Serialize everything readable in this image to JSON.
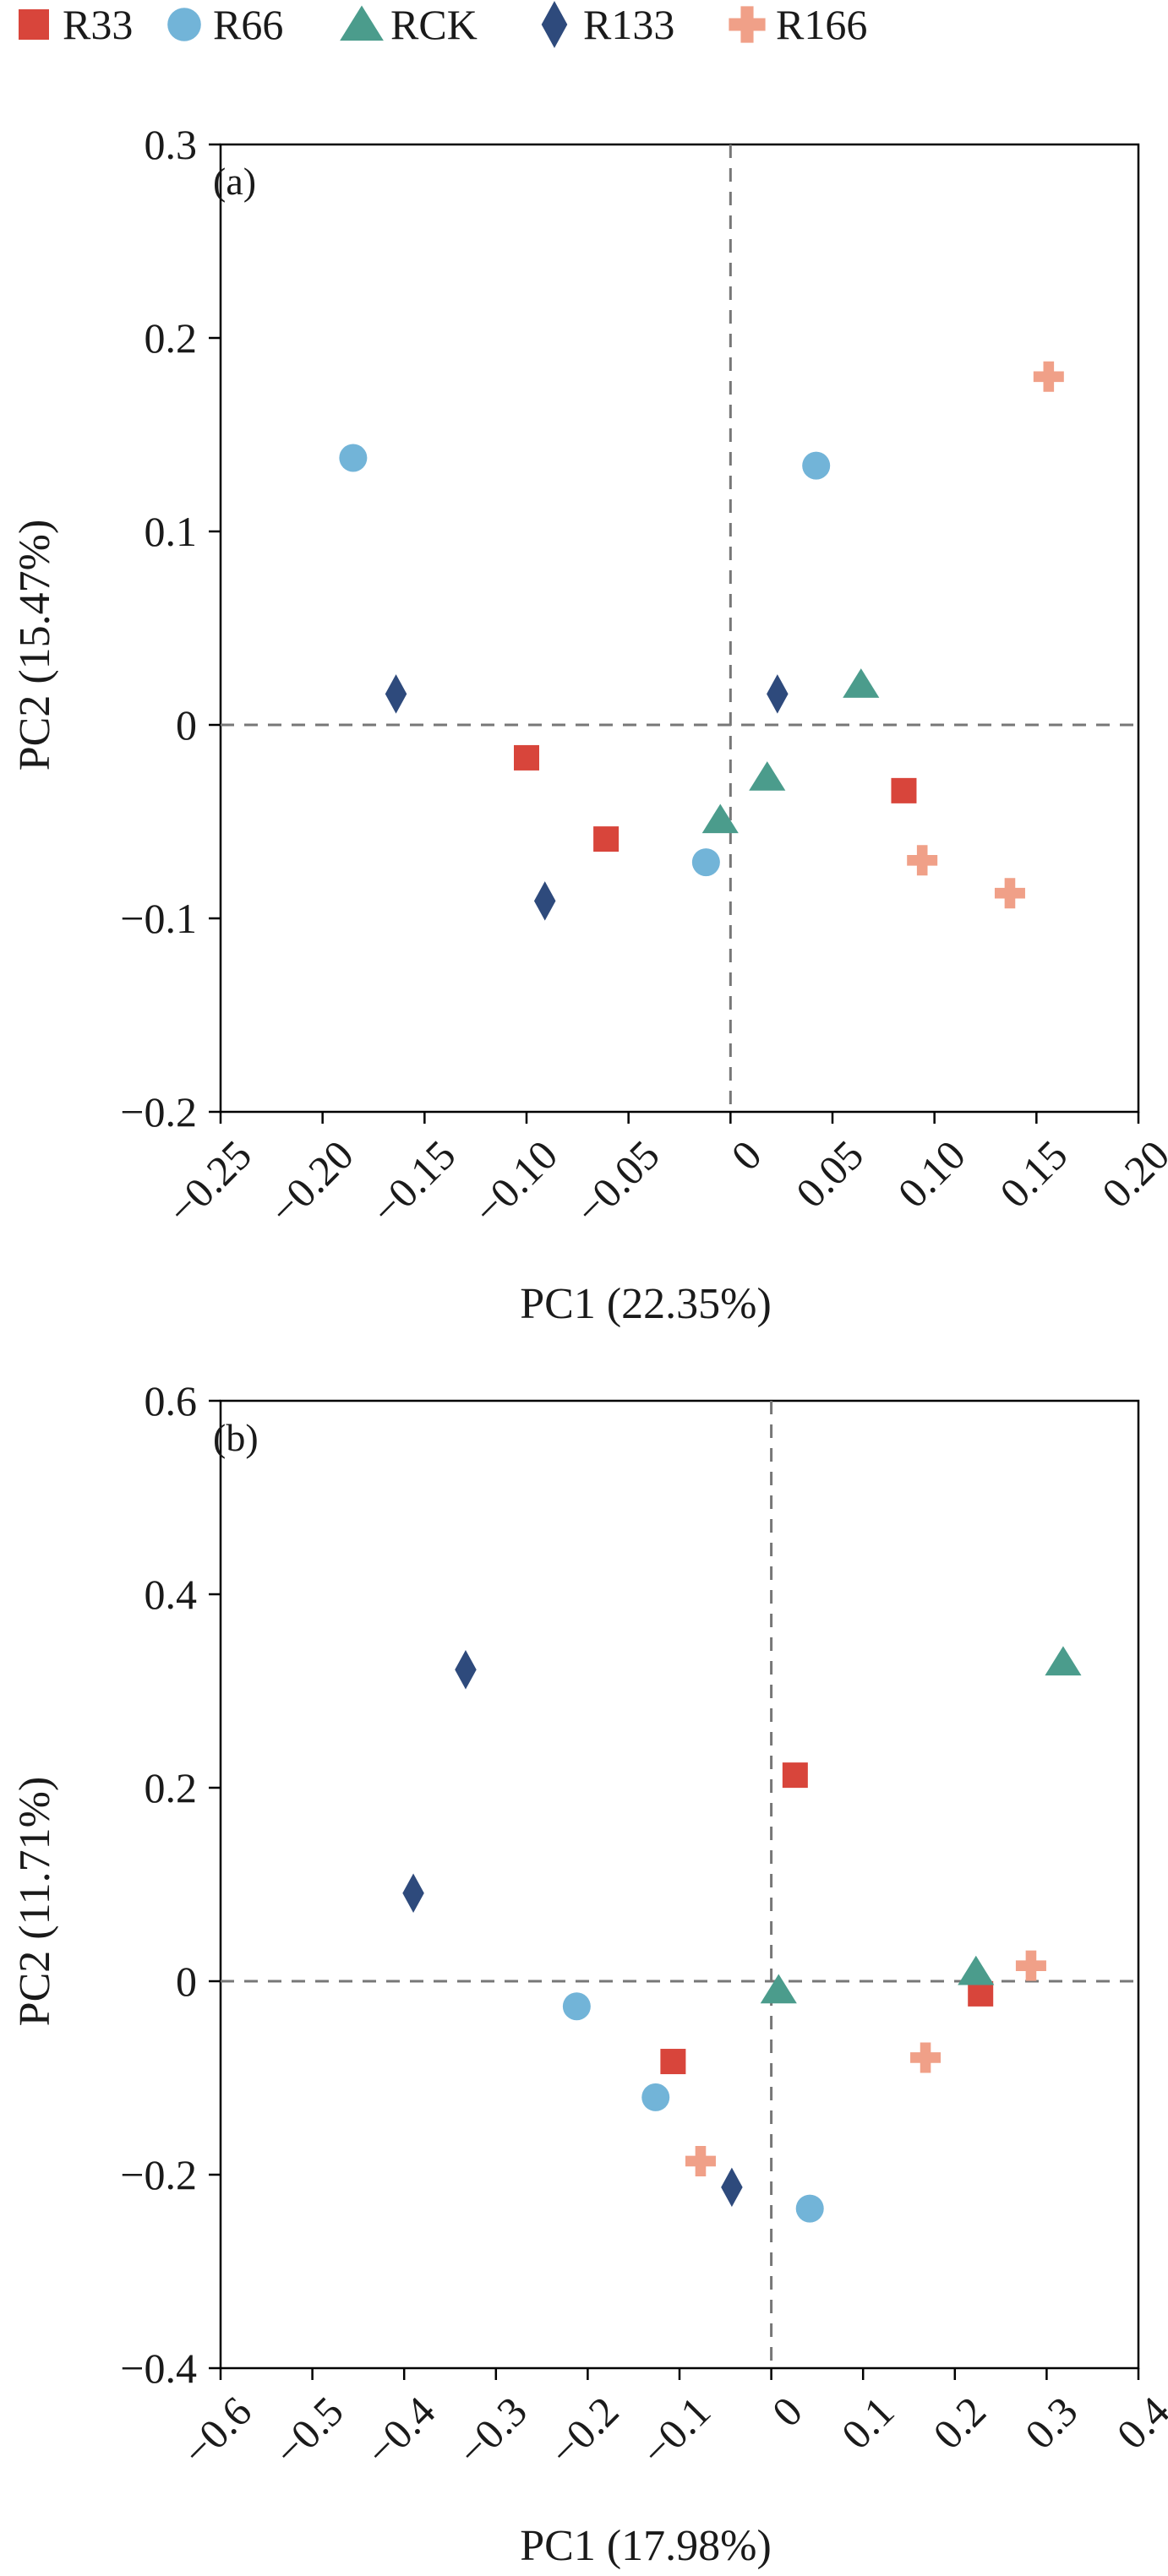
{
  "legend": {
    "items": [
      {
        "name": "R33",
        "color": "#d8453b",
        "marker": "square"
      },
      {
        "name": "R66",
        "color": "#72b4d8",
        "marker": "circle"
      },
      {
        "name": "RCK",
        "color": "#4b9c8c",
        "marker": "triangle"
      },
      {
        "name": "R133",
        "color": "#2e4a7c",
        "marker": "diamond"
      },
      {
        "name": "R166",
        "color": "#f0a088",
        "marker": "cross"
      }
    ]
  },
  "chart_data": [
    {
      "type": "scatter",
      "panel_label": "(a)",
      "xlabel": "PC1 (22.35%)",
      "ylabel": "PC2 (15.47%)",
      "xlim": [
        -0.25,
        0.2
      ],
      "ylim": [
        -0.2,
        0.3
      ],
      "xticks": [
        "−0.25",
        "−0.20",
        "−0.15",
        "−0.10",
        "−0.05",
        "0",
        "0.05",
        "0.10",
        "0.15",
        "0.20"
      ],
      "xtick_values": [
        -0.25,
        -0.2,
        -0.15,
        -0.1,
        -0.05,
        0,
        0.05,
        0.1,
        0.15,
        0.2
      ],
      "yticks": [
        "0.3",
        "0.2",
        "0.1",
        "0",
        "−0.1",
        "−0.2"
      ],
      "ytick_values": [
        0.3,
        0.2,
        0.1,
        0,
        -0.1,
        -0.2
      ],
      "reference_lines": {
        "x": 0,
        "y": 0
      },
      "series": [
        {
          "name": "R33",
          "points": [
            [
              -0.1,
              -0.017
            ],
            [
              -0.061,
              -0.059
            ],
            [
              0.085,
              -0.034
            ]
          ]
        },
        {
          "name": "R66",
          "points": [
            [
              -0.185,
              0.138
            ],
            [
              0.042,
              0.134
            ],
            [
              -0.012,
              -0.071
            ]
          ]
        },
        {
          "name": "RCK",
          "points": [
            [
              0.064,
              0.021
            ],
            [
              0.018,
              -0.027
            ],
            [
              -0.005,
              -0.049
            ]
          ]
        },
        {
          "name": "R133",
          "points": [
            [
              -0.164,
              0.016
            ],
            [
              0.023,
              0.016
            ],
            [
              -0.091,
              -0.091
            ]
          ]
        },
        {
          "name": "R166",
          "points": [
            [
              0.156,
              0.18
            ],
            [
              0.094,
              -0.07
            ],
            [
              0.137,
              -0.087
            ]
          ]
        }
      ]
    },
    {
      "type": "scatter",
      "panel_label": "(b)",
      "xlabel": "PC1 (17.98%)",
      "ylabel": "PC2 (11.71%)",
      "xlim": [
        -0.6,
        0.4
      ],
      "ylim": [
        -0.4,
        0.6
      ],
      "xticks": [
        "−0.6",
        "−0.5",
        "−0.4",
        "−0.3",
        "−0.2",
        "−0.1",
        "0",
        "0.1",
        "0.2",
        "0.3",
        "0.4"
      ],
      "xtick_values": [
        -0.6,
        -0.5,
        -0.4,
        -0.3,
        -0.2,
        -0.1,
        0,
        0.1,
        0.2,
        0.3,
        0.4
      ],
      "yticks": [
        "0.6",
        "0.4",
        "0.2",
        "0",
        "−0.2",
        "−0.4"
      ],
      "ytick_values": [
        0.6,
        0.4,
        0.2,
        0,
        -0.2,
        -0.4
      ],
      "reference_lines": {
        "x": 0,
        "y": 0
      },
      "series": [
        {
          "name": "R33",
          "points": [
            [
              0.026,
              0.213
            ],
            [
              0.228,
              -0.013
            ],
            [
              -0.107,
              -0.083
            ]
          ]
        },
        {
          "name": "R66",
          "points": [
            [
              -0.212,
              -0.026
            ],
            [
              -0.126,
              -0.12
            ],
            [
              0.042,
              -0.235
            ]
          ]
        },
        {
          "name": "RCK",
          "points": [
            [
              0.318,
              0.33
            ],
            [
              0.223,
              0.01
            ],
            [
              0.008,
              -0.009
            ]
          ]
        },
        {
          "name": "R133",
          "points": [
            [
              -0.333,
              0.322
            ],
            [
              -0.39,
              0.091
            ],
            [
              -0.043,
              -0.213
            ]
          ]
        },
        {
          "name": "R166",
          "points": [
            [
              0.283,
              0.016
            ],
            [
              0.168,
              -0.079
            ],
            [
              -0.077,
              -0.186
            ]
          ]
        }
      ]
    }
  ]
}
